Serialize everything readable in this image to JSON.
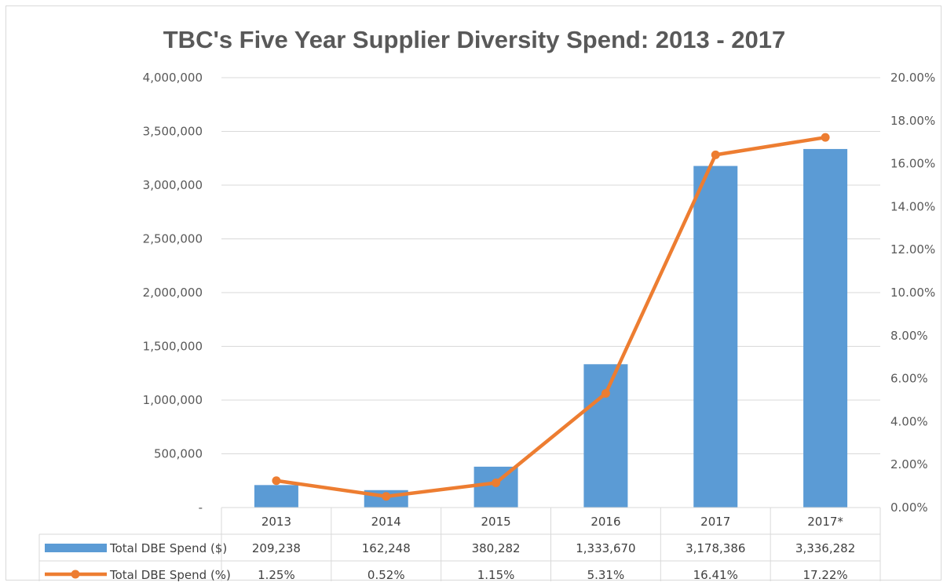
{
  "chart_data": {
    "type": "bar",
    "title": "TBC's Five Year Supplier Diversity Spend: 2013 - 2017",
    "categories": [
      "2013",
      "2014",
      "2015",
      "2016",
      "2017",
      "2017*"
    ],
    "series": [
      {
        "name": "Total DBE Spend ($)",
        "type": "bar",
        "axis": "left",
        "color": "#5b9bd5",
        "values": [
          209238,
          162248,
          380282,
          1333670,
          3178386,
          3336282
        ],
        "labels": [
          "209,238",
          "162,248",
          "380,282",
          "1,333,670",
          "3,178,386",
          "3,336,282"
        ]
      },
      {
        "name": "Total DBE Spend (%)",
        "type": "line",
        "axis": "right",
        "color": "#ed7d31",
        "values": [
          1.25,
          0.52,
          1.15,
          5.31,
          16.41,
          17.22
        ],
        "labels": [
          "1.25%",
          "0.52%",
          "1.15%",
          "5.31%",
          "16.41%",
          "17.22%"
        ]
      }
    ],
    "y_left": {
      "ylim": [
        0,
        4000000
      ],
      "ticks": [
        0,
        500000,
        1000000,
        1500000,
        2000000,
        2500000,
        3000000,
        3500000,
        4000000
      ],
      "tick_labels": [
        "-",
        "500,000",
        "1,000,000",
        "1,500,000",
        "2,000,000",
        "2,500,000",
        "3,000,000",
        "3,500,000",
        "4,000,000"
      ]
    },
    "y_right": {
      "ylim": [
        0,
        20
      ],
      "ticks": [
        0,
        2,
        4,
        6,
        8,
        10,
        12,
        14,
        16,
        18,
        20
      ],
      "tick_labels": [
        "0.00%",
        "2.00%",
        "4.00%",
        "6.00%",
        "8.00%",
        "10.00%",
        "12.00%",
        "14.00%",
        "16.00%",
        "18.00%",
        "20.00%"
      ]
    },
    "grid": true,
    "legend": "data-table"
  }
}
